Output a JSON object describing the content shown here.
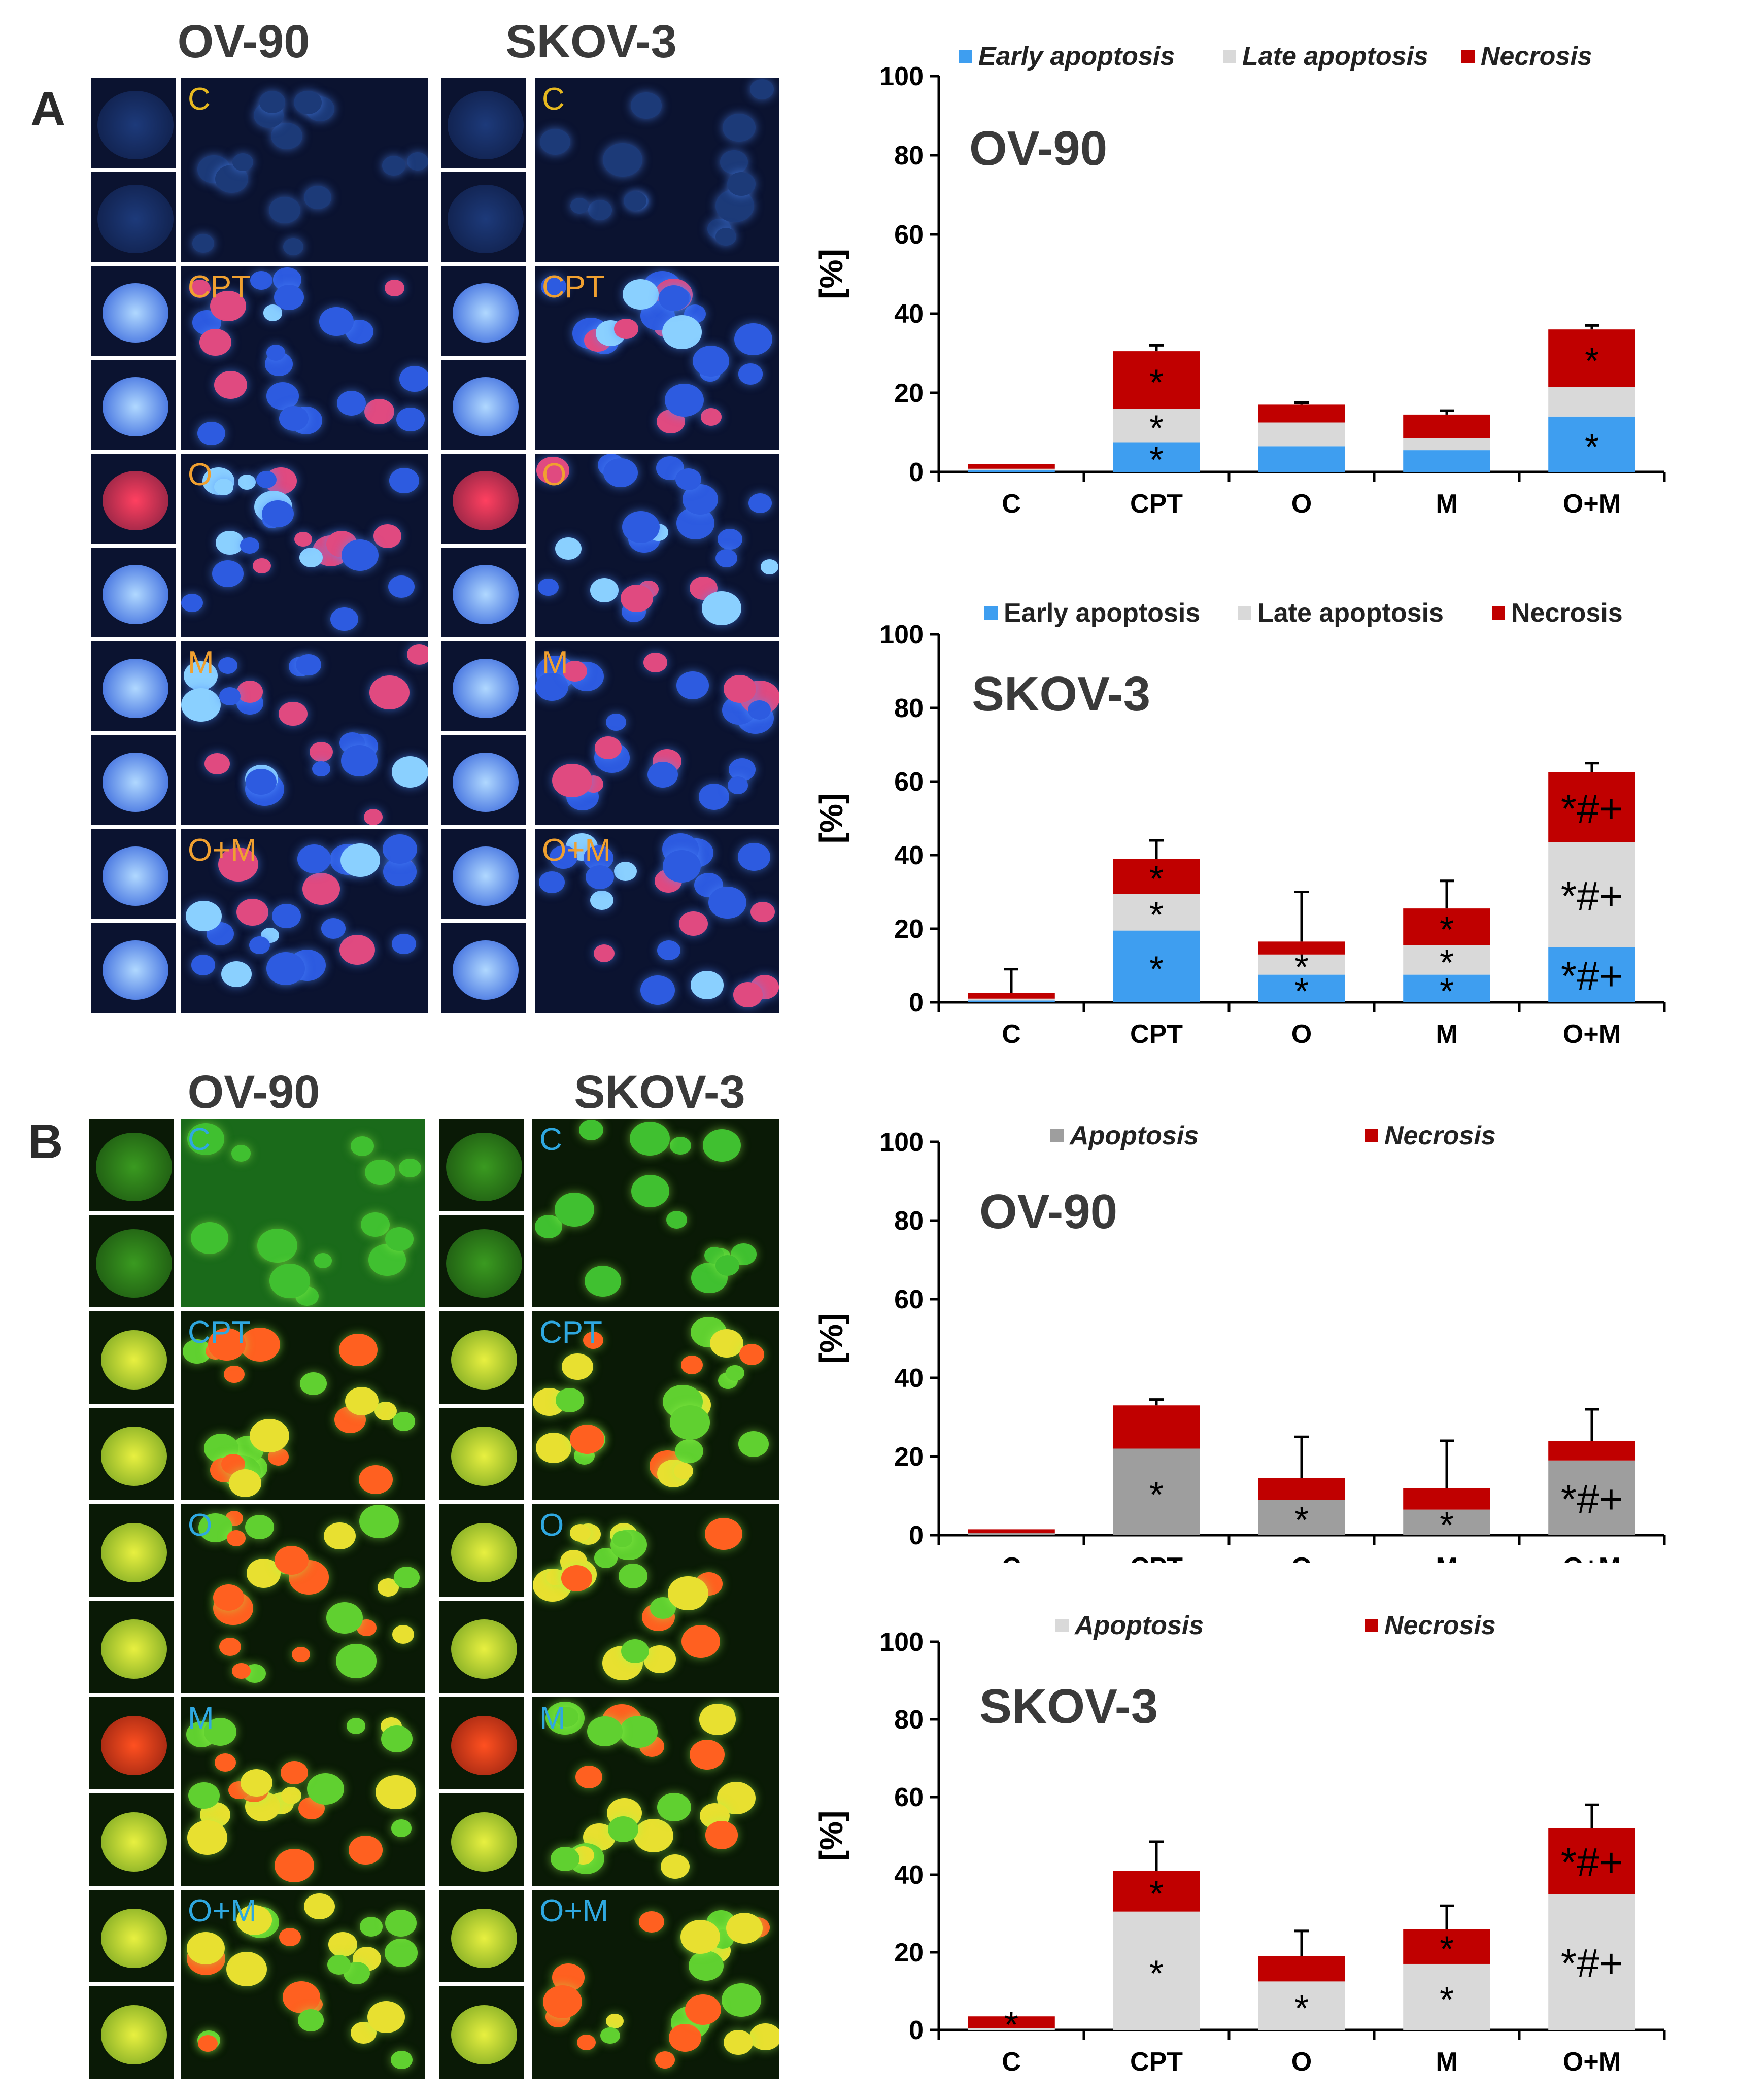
{
  "panel_labels": [
    "A",
    "B"
  ],
  "column_titles": {
    "a_left": "OV-90",
    "a_right": "SKOV-3",
    "b_left": "OV-90",
    "b_right": "SKOV-3"
  },
  "image_rows": [
    "C",
    "CPT",
    "O",
    "M",
    "O+M"
  ],
  "image_labels_a": [
    "C",
    "CPT",
    "O",
    "M",
    "O+M"
  ],
  "image_labels_b": [
    "C",
    "CPT",
    "O",
    "M",
    "O+M"
  ],
  "colors": {
    "early": "#3e9ef0",
    "late": "#d9d9d9",
    "necrosis": "#c00000",
    "apoptosis_dark": "#9e9e9e",
    "apoptosis_light": "#d9d9d9",
    "label_a": "#e6b820",
    "label_a2": "#f0a030",
    "label_b": "#2fa8e0"
  },
  "chart_data": [
    {
      "id": "chartA1",
      "type": "bar",
      "stacked": true,
      "title": "OV-90",
      "ylabel": "[%]",
      "ylim": [
        0,
        100
      ],
      "yticks": [
        0,
        20,
        40,
        60,
        80,
        100
      ],
      "categories": [
        "C",
        "CPT",
        "O",
        "M",
        "O+M"
      ],
      "legend_italic": true,
      "series": [
        {
          "name": "Early apoptosis",
          "color": "#3e9ef0",
          "values": [
            0.5,
            7.5,
            6.5,
            5.5,
            14
          ]
        },
        {
          "name": "Late apoptosis",
          "color": "#d9d9d9",
          "values": [
            0.3,
            8.5,
            6,
            3,
            7.5
          ]
        },
        {
          "name": "Necrosis",
          "color": "#c00000",
          "values": [
            1.2,
            14.5,
            4.5,
            6,
            14.5
          ]
        }
      ],
      "annotations": [
        [
          "",
          "",
          ""
        ],
        [
          "*",
          "*",
          "*"
        ],
        [
          "",
          "",
          ""
        ],
        [
          "",
          "",
          ""
        ],
        [
          "*",
          "",
          "*"
        ]
      ],
      "error_tops": [
        0,
        32,
        17.5,
        15.5,
        37
      ]
    },
    {
      "id": "chartA2",
      "type": "bar",
      "stacked": true,
      "title": "SKOV-3",
      "ylabel": "[%]",
      "ylim": [
        0,
        100
      ],
      "yticks": [
        0,
        20,
        40,
        60,
        80,
        100
      ],
      "categories": [
        "C",
        "CPT",
        "O",
        "M",
        "O+M"
      ],
      "legend_italic": false,
      "series": [
        {
          "name": "Early apoptosis",
          "color": "#3e9ef0",
          "values": [
            0.5,
            19.5,
            7.5,
            7.5,
            15
          ]
        },
        {
          "name": "Late apoptosis",
          "color": "#d9d9d9",
          "values": [
            0.5,
            10,
            5.5,
            8,
            28.5
          ]
        },
        {
          "name": "Necrosis",
          "color": "#c00000",
          "values": [
            1.5,
            9.5,
            3.5,
            10,
            19
          ]
        },
        {
          "name": "",
          "color": "none",
          "values": [
            0,
            0,
            0,
            0,
            0
          ]
        }
      ],
      "annotations": [
        [
          "",
          "",
          ""
        ],
        [
          "*",
          "*",
          "*"
        ],
        [
          "*",
          "*",
          ""
        ],
        [
          "*",
          "*",
          "*"
        ],
        [
          "*#+",
          "*#+",
          "*#+"
        ]
      ],
      "error_tops": [
        9,
        44,
        30,
        33,
        65
      ]
    },
    {
      "id": "chartB1",
      "type": "bar",
      "stacked": true,
      "title": "OV-90",
      "ylabel": "[%]",
      "ylim": [
        0,
        100
      ],
      "yticks": [
        0,
        20,
        40,
        60,
        80,
        100
      ],
      "categories": [
        "C",
        "CPT",
        "O",
        "M",
        "O+M"
      ],
      "legend_italic": true,
      "series": [
        {
          "name": "Apoptosis",
          "color": "#9e9e9e",
          "values": [
            0.5,
            22,
            9,
            6.5,
            19
          ]
        },
        {
          "name": "Necrosis",
          "color": "#c00000",
          "values": [
            1,
            11,
            5.5,
            5.5,
            5
          ]
        }
      ],
      "annotations": [
        [
          "",
          ""
        ],
        [
          "*",
          ""
        ],
        [
          "*",
          ""
        ],
        [
          "*",
          ""
        ],
        [
          "*#+",
          ""
        ]
      ],
      "error_tops": [
        0,
        34.5,
        25,
        24,
        32
      ]
    },
    {
      "id": "chartB2",
      "type": "bar",
      "stacked": true,
      "title": "SKOV-3",
      "ylabel": "[%]",
      "ylim": [
        0,
        100
      ],
      "yticks": [
        0,
        20,
        40,
        60,
        80,
        100
      ],
      "categories": [
        "C",
        "CPT",
        "O",
        "M",
        "O+M"
      ],
      "legend_italic": true,
      "series": [
        {
          "name": "Apoptosis",
          "color": "#d9d9d9",
          "values": [
            0.5,
            30.5,
            12.5,
            17,
            35
          ]
        },
        {
          "name": "Necrosis",
          "color": "#c00000",
          "values": [
            3,
            10.5,
            6.5,
            9,
            17
          ]
        }
      ],
      "annotations": [
        [
          "",
          "*"
        ],
        [
          "*",
          "*"
        ],
        [
          "*",
          ""
        ],
        [
          "*",
          "*"
        ],
        [
          "*#+",
          "*#+"
        ]
      ],
      "error_tops": [
        0,
        48.5,
        25.5,
        32,
        58
      ]
    }
  ]
}
